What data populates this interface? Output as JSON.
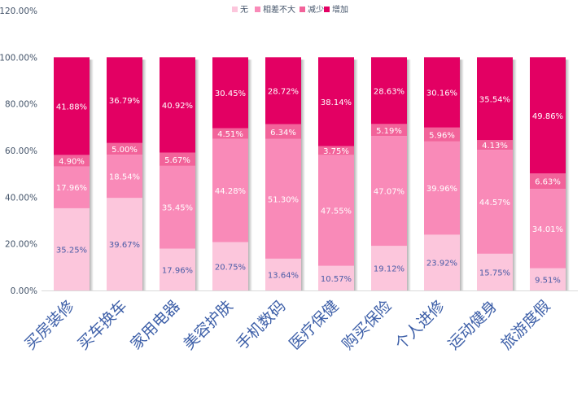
{
  "chart_data": {
    "type": "bar",
    "stacked": true,
    "categories": [
      "买房装修",
      "买车换车",
      "家用电器",
      "美容护肤",
      "手机数码",
      "医疗保健",
      "购买保险",
      "个人进修",
      "运动健身",
      "旅游度假"
    ],
    "series": [
      {
        "name": "无",
        "color": "#fcc6dc",
        "values": [
          35.25,
          39.67,
          17.96,
          20.75,
          13.64,
          10.57,
          19.12,
          23.92,
          15.75,
          9.51
        ],
        "labels": [
          "35.25%",
          "39.67%",
          "17.96%",
          "20.75%",
          "13.64%",
          "10.57%",
          "19.12%",
          "23.92%",
          "15.75%",
          "9.51%"
        ]
      },
      {
        "name": "相差不大",
        "color": "#f98ab8",
        "values": [
          17.96,
          18.54,
          35.45,
          44.28,
          51.3,
          47.55,
          47.07,
          39.96,
          44.57,
          34.01
        ],
        "labels": [
          "17.96%",
          "18.54%",
          "35.45%",
          "44.28%",
          "51.30%",
          "47.55%",
          "47.07%",
          "39.96%",
          "44.57%",
          "34.01%"
        ]
      },
      {
        "name": "减少",
        "color": "#f2639a",
        "values": [
          4.9,
          5.0,
          5.67,
          4.51,
          6.34,
          3.75,
          5.19,
          5.96,
          4.13,
          6.63
        ],
        "labels": [
          "4.90%",
          "5.00%",
          "5.67%",
          "4.51%",
          "6.34%",
          "3.75%",
          "5.19%",
          "5.96%",
          "4.13%",
          "6.63%"
        ]
      },
      {
        "name": "增加",
        "color": "#e30063",
        "values": [
          41.88,
          36.79,
          40.92,
          30.45,
          28.72,
          38.14,
          28.63,
          30.16,
          35.54,
          49.86
        ],
        "labels": [
          "41.88%",
          "36.79%",
          "40.92%",
          "30.45%",
          "28.72%",
          "38.14%",
          "28.63%",
          "30.16%",
          "35.54%",
          "49.86%"
        ]
      }
    ],
    "ylim": [
      0,
      120
    ],
    "yticks": [
      0,
      20,
      40,
      60,
      80,
      100,
      120
    ],
    "ytick_labels": [
      "0.00%",
      "20.00%",
      "40.00%",
      "60.00%",
      "80.00%",
      "100.00%",
      "120.00%"
    ],
    "legend_position": "top-center",
    "grid": false,
    "title": "",
    "xlabel": "",
    "ylabel": ""
  }
}
